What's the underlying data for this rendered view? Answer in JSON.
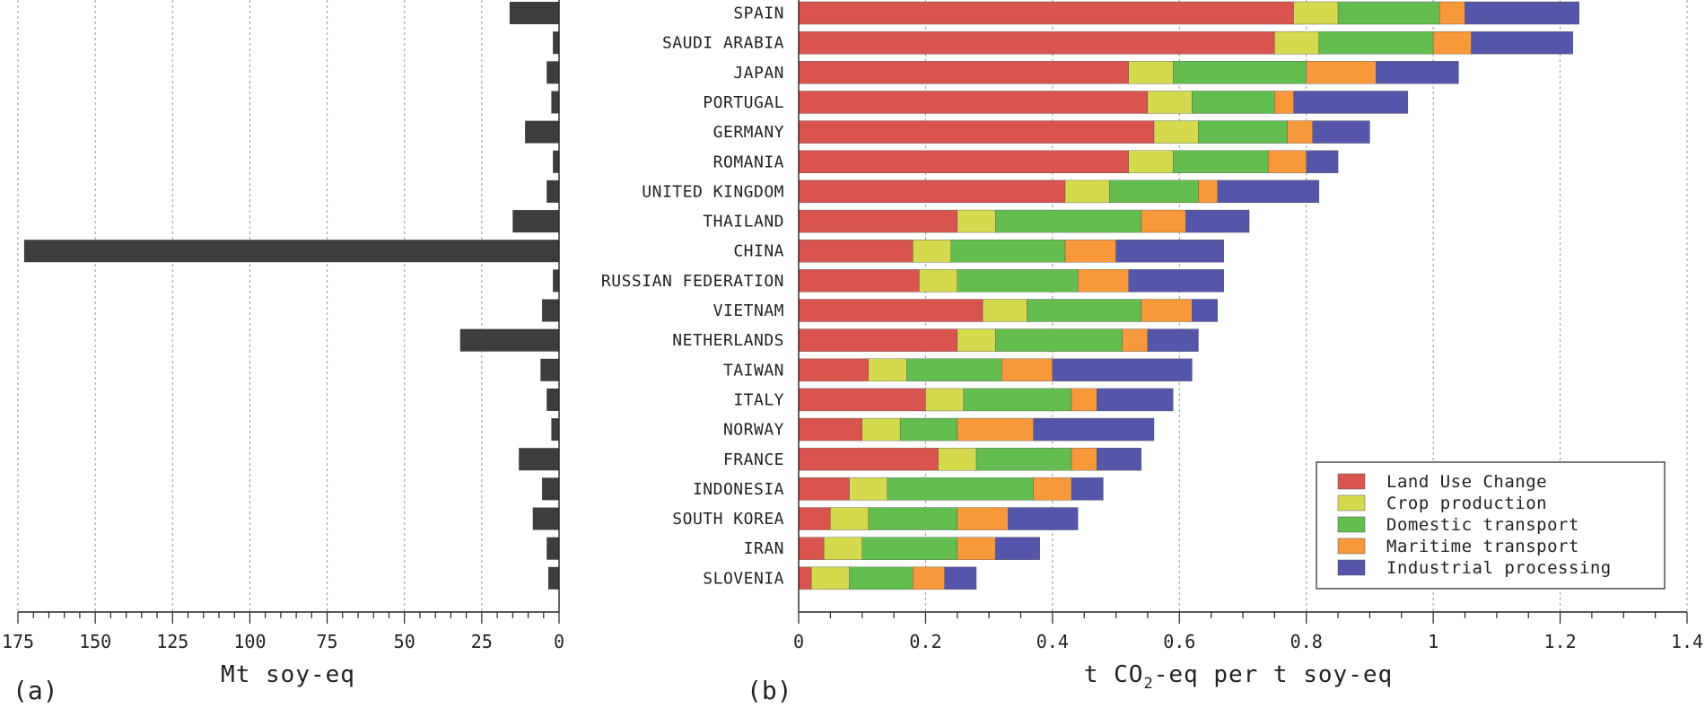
{
  "chart_data": [
    {
      "panel": "(a)",
      "type": "bar",
      "orientation": "horizontal",
      "reversed_x": true,
      "xlabel": "Mt soy-eq",
      "xlim": [
        0,
        175
      ],
      "xticks": [
        175,
        150,
        125,
        100,
        75,
        50,
        25,
        0
      ],
      "minor_tick_step": 5,
      "bar_color": "#3d3d3d",
      "grid": "vertical dotted",
      "categories": [
        "SPAIN",
        "SAUDI ARABIA",
        "JAPAN",
        "PORTUGAL",
        "GERMANY",
        "ROMANIA",
        "UNITED KINGDOM",
        "THAILAND",
        "CHINA",
        "RUSSIAN FEDERATION",
        "VIETNAM",
        "NETHERLANDS",
        "TAIWAN",
        "ITALY",
        "NORWAY",
        "FRANCE",
        "INDONESIA",
        "SOUTH KOREA",
        "IRAN",
        "SLOVENIA"
      ],
      "values": [
        16,
        2,
        4,
        2.5,
        11,
        2,
        4,
        15,
        173,
        2,
        5.5,
        32,
        6,
        4,
        2.5,
        13,
        5.5,
        8.5,
        4,
        3.5
      ]
    },
    {
      "panel": "(b)",
      "type": "bar",
      "orientation": "horizontal",
      "stacked": true,
      "xlabel_parts": [
        "t CO",
        "2",
        "-eq per t soy-eq"
      ],
      "xlim": [
        0,
        1.4
      ],
      "xticks": [
        "0",
        "0.2",
        "0.4",
        "0.6",
        "0.8",
        "1",
        "1.2",
        "1.4"
      ],
      "minor_tick_step": 0.05,
      "grid": "vertical dotted",
      "legend_placement": "bottom-right",
      "categories": [
        "SPAIN",
        "SAUDI ARABIA",
        "JAPAN",
        "PORTUGAL",
        "GERMANY",
        "ROMANIA",
        "UNITED KINGDOM",
        "THAILAND",
        "CHINA",
        "RUSSIAN FEDERATION",
        "VIETNAM",
        "NETHERLANDS",
        "TAIWAN",
        "ITALY",
        "NORWAY",
        "FRANCE",
        "INDONESIA",
        "SOUTH KOREA",
        "IRAN",
        "SLOVENIA"
      ],
      "series": [
        {
          "name": "Land Use Change",
          "color": "#d9534f",
          "values": [
            0.78,
            0.75,
            0.52,
            0.55,
            0.56,
            0.52,
            0.42,
            0.25,
            0.18,
            0.19,
            0.29,
            0.25,
            0.11,
            0.2,
            0.1,
            0.22,
            0.08,
            0.05,
            0.04,
            0.02
          ]
        },
        {
          "name": "Crop production",
          "color": "#d4d94e",
          "values": [
            0.07,
            0.07,
            0.07,
            0.07,
            0.07,
            0.07,
            0.07,
            0.06,
            0.06,
            0.06,
            0.07,
            0.06,
            0.06,
            0.06,
            0.06,
            0.06,
            0.06,
            0.06,
            0.06,
            0.06
          ]
        },
        {
          "name": "Domestic transport",
          "color": "#63bd4f",
          "values": [
            0.16,
            0.18,
            0.21,
            0.13,
            0.14,
            0.15,
            0.14,
            0.23,
            0.18,
            0.19,
            0.18,
            0.2,
            0.15,
            0.17,
            0.09,
            0.15,
            0.23,
            0.14,
            0.15,
            0.1
          ]
        },
        {
          "name": "Maritime transport",
          "color": "#f7983a",
          "values": [
            0.04,
            0.06,
            0.11,
            0.03,
            0.04,
            0.06,
            0.03,
            0.07,
            0.08,
            0.08,
            0.08,
            0.04,
            0.08,
            0.04,
            0.12,
            0.04,
            0.06,
            0.08,
            0.06,
            0.05
          ]
        },
        {
          "name": "Industrial processing",
          "color": "#5555aa",
          "values": [
            0.18,
            0.16,
            0.13,
            0.18,
            0.09,
            0.05,
            0.16,
            0.1,
            0.17,
            0.15,
            0.04,
            0.08,
            0.22,
            0.12,
            0.19,
            0.07,
            0.05,
            0.11,
            0.07,
            0.05
          ]
        }
      ]
    }
  ]
}
